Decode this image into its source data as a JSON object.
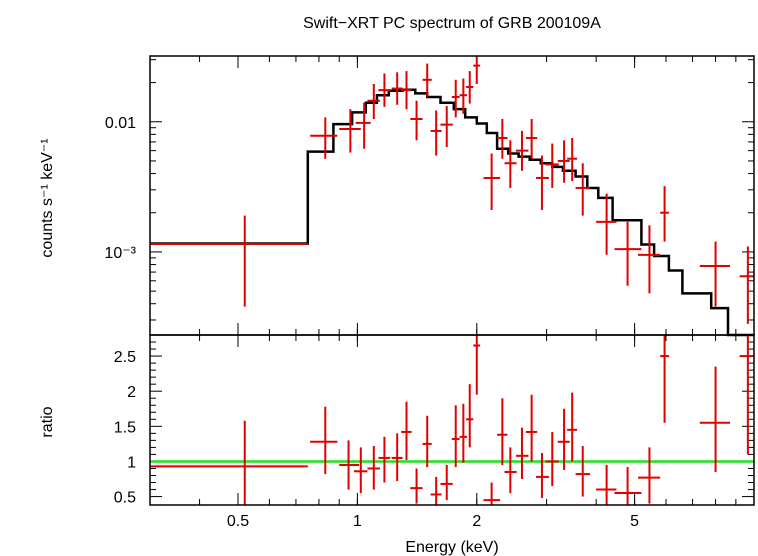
{
  "colors": {
    "data": "#e00000",
    "model": "#000000",
    "unity": "#22e022",
    "axis": "#000000"
  },
  "chart_data": {
    "title": "Swift−XRT PC spectrum of GRB 200109A",
    "xlabel": "Energy (keV)",
    "xscale": "log",
    "xlim": [
      0.3,
      10
    ],
    "xticks": [
      {
        "v": 0.5,
        "label": "0.5"
      },
      {
        "v": 1,
        "label": "1"
      },
      {
        "v": 2,
        "label": "2"
      },
      {
        "v": 5,
        "label": "5"
      }
    ],
    "panels": [
      {
        "id": "spectrum",
        "type": "scatter",
        "ylabel": "counts s⁻¹ keV⁻¹",
        "yscale": "log",
        "ylim": [
          0.00023,
          0.032
        ],
        "yticks": [
          {
            "v": 0.01,
            "label": "0.01"
          },
          {
            "v": 0.001,
            "label": "10⁻³"
          }
        ],
        "model_steps": [
          [
            0.3,
            0.75,
            0.00116
          ],
          [
            0.75,
            0.87,
            0.0059
          ],
          [
            0.87,
            0.97,
            0.0096
          ],
          [
            0.97,
            1.05,
            0.0118
          ],
          [
            1.05,
            1.12,
            0.014
          ],
          [
            1.12,
            1.2,
            0.016
          ],
          [
            1.2,
            1.3,
            0.0173
          ],
          [
            1.3,
            1.4,
            0.0176
          ],
          [
            1.4,
            1.5,
            0.0165
          ],
          [
            1.5,
            1.62,
            0.0155
          ],
          [
            1.62,
            1.75,
            0.014
          ],
          [
            1.75,
            1.87,
            0.0125
          ],
          [
            1.87,
            2.0,
            0.0108
          ],
          [
            2.0,
            2.12,
            0.0097
          ],
          [
            2.12,
            2.25,
            0.0082
          ],
          [
            2.25,
            2.4,
            0.0062
          ],
          [
            2.4,
            2.55,
            0.0057
          ],
          [
            2.55,
            2.72,
            0.0054
          ],
          [
            2.72,
            2.9,
            0.0051
          ],
          [
            2.9,
            3.1,
            0.0048
          ],
          [
            3.1,
            3.3,
            0.0045
          ],
          [
            3.3,
            3.55,
            0.0042
          ],
          [
            3.55,
            3.8,
            0.0038
          ],
          [
            3.8,
            4.05,
            0.0031
          ],
          [
            4.05,
            4.4,
            0.0026
          ],
          [
            4.4,
            5.2,
            0.00175
          ],
          [
            5.2,
            5.6,
            0.00114
          ],
          [
            5.6,
            6.1,
            0.00093
          ],
          [
            6.1,
            6.6,
            0.00072
          ],
          [
            6.6,
            7.8,
            0.00048
          ],
          [
            7.8,
            8.6,
            0.00037
          ],
          [
            8.6,
            10,
            0.00023
          ]
        ],
        "points": [
          {
            "x": 0.52,
            "xlo": 0.3,
            "xhi": 0.75,
            "y": 0.00115,
            "ylo": 0.00038,
            "yhi": 0.0019
          },
          {
            "x": 0.83,
            "xlo": 0.76,
            "xhi": 0.89,
            "y": 0.0078,
            "ylo": 0.0052,
            "yhi": 0.0108
          },
          {
            "x": 0.96,
            "xlo": 0.9,
            "xhi": 1.02,
            "y": 0.0088,
            "ylo": 0.0058,
            "yhi": 0.0125
          },
          {
            "x": 1.04,
            "xlo": 0.99,
            "xhi": 1.08,
            "y": 0.0098,
            "ylo": 0.0062,
            "yhi": 0.014
          },
          {
            "x": 1.1,
            "xlo": 1.06,
            "xhi": 1.14,
            "y": 0.0145,
            "ylo": 0.0105,
            "yhi": 0.0195
          },
          {
            "x": 1.17,
            "xlo": 1.13,
            "xhi": 1.21,
            "y": 0.0175,
            "ylo": 0.013,
            "yhi": 0.0235
          },
          {
            "x": 1.26,
            "xlo": 1.22,
            "xhi": 1.3,
            "y": 0.018,
            "ylo": 0.0135,
            "yhi": 0.024
          },
          {
            "x": 1.33,
            "xlo": 1.29,
            "xhi": 1.37,
            "y": 0.0175,
            "ylo": 0.0125,
            "yhi": 0.0245
          },
          {
            "x": 1.41,
            "xlo": 1.36,
            "xhi": 1.46,
            "y": 0.0105,
            "ylo": 0.0072,
            "yhi": 0.0145
          },
          {
            "x": 1.5,
            "xlo": 1.46,
            "xhi": 1.54,
            "y": 0.021,
            "ylo": 0.0155,
            "yhi": 0.028
          },
          {
            "x": 1.58,
            "xlo": 1.53,
            "xhi": 1.63,
            "y": 0.0085,
            "ylo": 0.0055,
            "yhi": 0.0122
          },
          {
            "x": 1.68,
            "xlo": 1.62,
            "xhi": 1.74,
            "y": 0.0095,
            "ylo": 0.0064,
            "yhi": 0.0132
          },
          {
            "x": 1.77,
            "xlo": 1.73,
            "xhi": 1.81,
            "y": 0.0155,
            "ylo": 0.0108,
            "yhi": 0.021
          },
          {
            "x": 1.85,
            "xlo": 1.81,
            "xhi": 1.89,
            "y": 0.016,
            "ylo": 0.0115,
            "yhi": 0.0215
          },
          {
            "x": 1.92,
            "xlo": 1.88,
            "xhi": 1.96,
            "y": 0.0185,
            "ylo": 0.0138,
            "yhi": 0.0245
          },
          {
            "x": 2.0,
            "xlo": 1.96,
            "xhi": 2.04,
            "y": 0.027,
            "ylo": 0.0195,
            "yhi": 0.036
          },
          {
            "x": 2.18,
            "xlo": 2.08,
            "xhi": 2.29,
            "y": 0.0037,
            "ylo": 0.0021,
            "yhi": 0.0057
          },
          {
            "x": 2.32,
            "xlo": 2.25,
            "xhi": 2.39,
            "y": 0.0075,
            "ylo": 0.0052,
            "yhi": 0.0105
          },
          {
            "x": 2.43,
            "xlo": 2.35,
            "xhi": 2.52,
            "y": 0.0048,
            "ylo": 0.0031,
            "yhi": 0.0072
          },
          {
            "x": 2.6,
            "xlo": 2.51,
            "xhi": 2.7,
            "y": 0.006,
            "ylo": 0.0042,
            "yhi": 0.0085
          },
          {
            "x": 2.75,
            "xlo": 2.66,
            "xhi": 2.84,
            "y": 0.0075,
            "ylo": 0.0052,
            "yhi": 0.0105
          },
          {
            "x": 2.92,
            "xlo": 2.82,
            "xhi": 3.04,
            "y": 0.0037,
            "ylo": 0.0021,
            "yhi": 0.0055
          },
          {
            "x": 3.1,
            "xlo": 2.98,
            "xhi": 3.22,
            "y": 0.0047,
            "ylo": 0.0031,
            "yhi": 0.0068
          },
          {
            "x": 3.32,
            "xlo": 3.2,
            "xhi": 3.43,
            "y": 0.005,
            "ylo": 0.0034,
            "yhi": 0.0072
          },
          {
            "x": 3.48,
            "xlo": 3.38,
            "xhi": 3.58,
            "y": 0.0052,
            "ylo": 0.0035,
            "yhi": 0.0075
          },
          {
            "x": 3.7,
            "xlo": 3.55,
            "xhi": 3.86,
            "y": 0.0031,
            "ylo": 0.0019,
            "yhi": 0.0048
          },
          {
            "x": 4.25,
            "xlo": 4.0,
            "xhi": 4.5,
            "y": 0.0017,
            "ylo": 0.00095,
            "yhi": 0.0028
          },
          {
            "x": 4.8,
            "xlo": 4.45,
            "xhi": 5.2,
            "y": 0.00105,
            "ylo": 0.00055,
            "yhi": 0.0017
          },
          {
            "x": 5.45,
            "xlo": 5.1,
            "xhi": 5.8,
            "y": 0.00095,
            "ylo": 0.00048,
            "yhi": 0.0016
          },
          {
            "x": 5.95,
            "xlo": 5.8,
            "xhi": 6.1,
            "y": 0.002,
            "ylo": 0.0012,
            "yhi": 0.0032
          },
          {
            "x": 8.0,
            "xlo": 7.3,
            "xhi": 8.7,
            "y": 0.00078,
            "ylo": 0.00038,
            "yhi": 0.0012
          },
          {
            "x": 9.65,
            "xlo": 9.2,
            "xhi": 10.1,
            "y": 0.00065,
            "ylo": 0.00028,
            "yhi": 0.0011
          }
        ]
      },
      {
        "id": "ratio",
        "type": "scatter",
        "ylabel": "ratio",
        "yscale": "linear",
        "ylim": [
          0.38,
          2.8
        ],
        "yticks": [
          {
            "v": 0.5,
            "label": "0.5"
          },
          {
            "v": 1,
            "label": "1"
          },
          {
            "v": 1.5,
            "label": "1.5"
          },
          {
            "v": 2,
            "label": "2"
          },
          {
            "v": 2.5,
            "label": "2.5"
          }
        ],
        "unity": 1,
        "points": [
          {
            "x": 0.52,
            "xlo": 0.3,
            "xhi": 0.75,
            "y": 0.93,
            "ylo": 0.38,
            "yhi": 1.58
          },
          {
            "x": 0.83,
            "xlo": 0.76,
            "xhi": 0.89,
            "y": 1.28,
            "ylo": 0.82,
            "yhi": 1.78
          },
          {
            "x": 0.95,
            "xlo": 0.9,
            "xhi": 1.01,
            "y": 0.95,
            "ylo": 0.6,
            "yhi": 1.3
          },
          {
            "x": 1.02,
            "xlo": 0.98,
            "xhi": 1.06,
            "y": 0.86,
            "ylo": 0.55,
            "yhi": 1.2
          },
          {
            "x": 1.1,
            "xlo": 1.06,
            "xhi": 1.14,
            "y": 0.9,
            "ylo": 0.6,
            "yhi": 1.22
          },
          {
            "x": 1.17,
            "xlo": 1.13,
            "xhi": 1.21,
            "y": 1.05,
            "ylo": 0.7,
            "yhi": 1.35
          },
          {
            "x": 1.26,
            "xlo": 1.22,
            "xhi": 1.3,
            "y": 1.05,
            "ylo": 0.72,
            "yhi": 1.4
          },
          {
            "x": 1.33,
            "xlo": 1.29,
            "xhi": 1.37,
            "y": 1.42,
            "ylo": 1.02,
            "yhi": 1.85
          },
          {
            "x": 1.41,
            "xlo": 1.36,
            "xhi": 1.46,
            "y": 0.62,
            "ylo": 0.4,
            "yhi": 0.9
          },
          {
            "x": 1.5,
            "xlo": 1.46,
            "xhi": 1.54,
            "y": 1.25,
            "ylo": 0.92,
            "yhi": 1.65
          },
          {
            "x": 1.58,
            "xlo": 1.53,
            "xhi": 1.63,
            "y": 0.53,
            "ylo": 0.35,
            "yhi": 0.78
          },
          {
            "x": 1.68,
            "xlo": 1.62,
            "xhi": 1.74,
            "y": 0.68,
            "ylo": 0.45,
            "yhi": 0.95
          },
          {
            "x": 1.77,
            "xlo": 1.73,
            "xhi": 1.81,
            "y": 1.32,
            "ylo": 0.92,
            "yhi": 1.8
          },
          {
            "x": 1.85,
            "xlo": 1.81,
            "xhi": 1.89,
            "y": 1.35,
            "ylo": 0.98,
            "yhi": 1.82
          },
          {
            "x": 1.92,
            "xlo": 1.88,
            "xhi": 1.96,
            "y": 1.6,
            "ylo": 1.2,
            "yhi": 2.1
          },
          {
            "x": 2.0,
            "xlo": 1.96,
            "xhi": 2.04,
            "y": 2.65,
            "ylo": 1.95,
            "yhi": 3.5
          },
          {
            "x": 2.18,
            "xlo": 2.08,
            "xhi": 2.29,
            "y": 0.45,
            "ylo": 0.28,
            "yhi": 0.7
          },
          {
            "x": 2.32,
            "xlo": 2.25,
            "xhi": 2.39,
            "y": 1.38,
            "ylo": 0.95,
            "yhi": 1.9
          },
          {
            "x": 2.43,
            "xlo": 2.35,
            "xhi": 2.52,
            "y": 0.85,
            "ylo": 0.55,
            "yhi": 1.2
          },
          {
            "x": 2.6,
            "xlo": 2.51,
            "xhi": 2.7,
            "y": 1.08,
            "ylo": 0.75,
            "yhi": 1.48
          },
          {
            "x": 2.75,
            "xlo": 2.66,
            "xhi": 2.84,
            "y": 1.42,
            "ylo": 1.0,
            "yhi": 1.95
          },
          {
            "x": 2.92,
            "xlo": 2.82,
            "xhi": 3.04,
            "y": 0.78,
            "ylo": 0.48,
            "yhi": 1.12
          },
          {
            "x": 3.1,
            "xlo": 2.98,
            "xhi": 3.22,
            "y": 1.0,
            "ylo": 0.65,
            "yhi": 1.42
          },
          {
            "x": 3.32,
            "xlo": 3.2,
            "xhi": 3.43,
            "y": 1.28,
            "ylo": 0.88,
            "yhi": 1.75
          },
          {
            "x": 3.48,
            "xlo": 3.38,
            "xhi": 3.58,
            "y": 1.45,
            "ylo": 1.0,
            "yhi": 1.98
          },
          {
            "x": 3.7,
            "xlo": 3.55,
            "xhi": 3.86,
            "y": 0.82,
            "ylo": 0.5,
            "yhi": 1.22
          },
          {
            "x": 4.25,
            "xlo": 4.0,
            "xhi": 4.5,
            "y": 0.6,
            "ylo": 0.32,
            "yhi": 0.95
          },
          {
            "x": 4.8,
            "xlo": 4.45,
            "xhi": 5.2,
            "y": 0.55,
            "ylo": 0.3,
            "yhi": 0.92
          },
          {
            "x": 5.45,
            "xlo": 5.1,
            "xhi": 5.8,
            "y": 0.77,
            "ylo": 0.4,
            "yhi": 1.2
          },
          {
            "x": 5.95,
            "xlo": 5.8,
            "xhi": 6.1,
            "y": 2.5,
            "ylo": 1.55,
            "yhi": 3.2
          },
          {
            "x": 8.0,
            "xlo": 7.3,
            "xhi": 8.7,
            "y": 1.55,
            "ylo": 0.85,
            "yhi": 2.35
          },
          {
            "x": 9.65,
            "xlo": 9.2,
            "xhi": 10.1,
            "y": 2.5,
            "ylo": 1.1,
            "yhi": 3.5
          }
        ]
      }
    ]
  }
}
